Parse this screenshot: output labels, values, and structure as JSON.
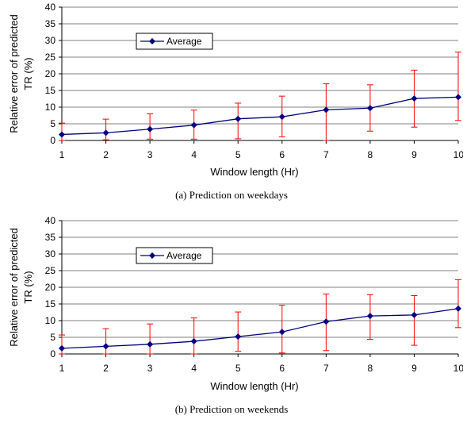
{
  "chart_data": [
    {
      "type": "line",
      "caption": "(a) Prediction on weekdays",
      "xlabel": "Window length (Hr)",
      "ylabel_line1": "Relative error of predicted",
      "ylabel_line2": "TR (%)",
      "x": [
        1,
        2,
        3,
        4,
        5,
        6,
        7,
        8,
        9,
        10
      ],
      "ylim": [
        0,
        40
      ],
      "yticks": [
        0,
        5,
        10,
        15,
        20,
        25,
        30,
        35,
        40
      ],
      "grid": "horizontal",
      "legend_position": "upper-left",
      "series": [
        {
          "name": "Average",
          "color": "#000080",
          "values": [
            1.8,
            2.3,
            3.4,
            4.6,
            6.5,
            7.1,
            9.2,
            9.7,
            12.6,
            13.0
          ],
          "error_low": [
            0,
            0.2,
            0.4,
            0.4,
            0.5,
            1.1,
            0,
            2.8,
            4.0,
            6.0
          ],
          "error_high": [
            5.2,
            6.4,
            8.0,
            9.1,
            11.2,
            13.3,
            17.0,
            16.7,
            21.1,
            26.5
          ],
          "error_color": "#ff0000"
        }
      ]
    },
    {
      "type": "line",
      "caption": "(b) Prediction on weekends",
      "xlabel": "Window length (Hr)",
      "ylabel_line1": "Relative error of predicted",
      "ylabel_line2": "TR (%)",
      "x": [
        1,
        2,
        3,
        4,
        5,
        6,
        7,
        8,
        9,
        10
      ],
      "ylim": [
        0,
        40
      ],
      "yticks": [
        0,
        5,
        10,
        15,
        20,
        25,
        30,
        35,
        40
      ],
      "grid": "horizontal",
      "legend_position": "upper-left",
      "series": [
        {
          "name": "Average",
          "color": "#000080",
          "values": [
            1.7,
            2.3,
            2.9,
            3.8,
            5.2,
            6.6,
            9.7,
            11.4,
            11.7,
            13.6
          ],
          "error_low": [
            0,
            0,
            0,
            0,
            0.8,
            0.3,
            1.0,
            4.4,
            2.6,
            7.9
          ],
          "error_high": [
            5.7,
            7.6,
            9.0,
            10.8,
            12.6,
            14.6,
            18.0,
            17.8,
            17.5,
            22.3
          ],
          "error_color": "#ff0000"
        }
      ]
    }
  ]
}
